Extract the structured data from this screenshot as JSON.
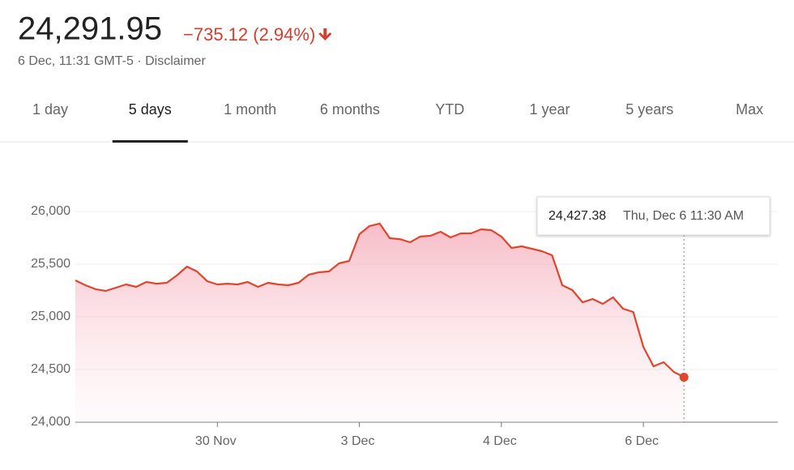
{
  "header": {
    "price": "24,291.95",
    "change": "−735.12 (2.94%)",
    "timestamp": "6 Dec, 11:31 GMT-5 · Disclaimer"
  },
  "tabs": [
    "1 day",
    "5 days",
    "1 month",
    "6 months",
    "YTD",
    "1 year",
    "5 years",
    "Max"
  ],
  "selected_tab": 1,
  "chart_data": {
    "type": "line",
    "color": "#e0452d",
    "grid": true,
    "ylim": [
      24000,
      26000
    ],
    "yticks": [
      {
        "value": 24000,
        "label": "24,000"
      },
      {
        "value": 24500,
        "label": "24,500"
      },
      {
        "value": 25000,
        "label": "25,000"
      },
      {
        "value": 25500,
        "label": "25,500"
      },
      {
        "value": 26000,
        "label": "26,000"
      }
    ],
    "categories": [
      null,
      null,
      null,
      null,
      null,
      null,
      null,
      null,
      null,
      null,
      null,
      null,
      null,
      null,
      "30 Nov",
      null,
      null,
      null,
      null,
      null,
      null,
      null,
      null,
      null,
      null,
      null,
      null,
      null,
      "3 Dec",
      null,
      null,
      null,
      null,
      null,
      null,
      null,
      null,
      null,
      null,
      null,
      null,
      null,
      "4 Dec",
      null,
      null,
      null,
      null,
      null,
      null,
      null,
      null,
      null,
      null,
      null,
      null,
      null,
      "6 Dec",
      null,
      null,
      null,
      null
    ],
    "values": [
      25346,
      25300,
      25262,
      25246,
      25277,
      25308,
      25285,
      25331,
      25315,
      25323,
      25392,
      25477,
      25431,
      25338,
      25308,
      25315,
      25308,
      25331,
      25285,
      25323,
      25308,
      25300,
      25323,
      25400,
      25423,
      25431,
      25508,
      25531,
      25785,
      25862,
      25885,
      25746,
      25738,
      25708,
      25762,
      25769,
      25808,
      25754,
      25792,
      25792,
      25831,
      25823,
      25762,
      25654,
      25669,
      25646,
      25623,
      25585,
      25300,
      25254,
      25138,
      25169,
      25123,
      25185,
      25077,
      25046,
      24715,
      24531,
      24569,
      24477,
      24427.38
    ],
    "tooltip": {
      "value_label": "24,427.38",
      "time": "Thu, Dec 6 11:30 AM"
    }
  }
}
